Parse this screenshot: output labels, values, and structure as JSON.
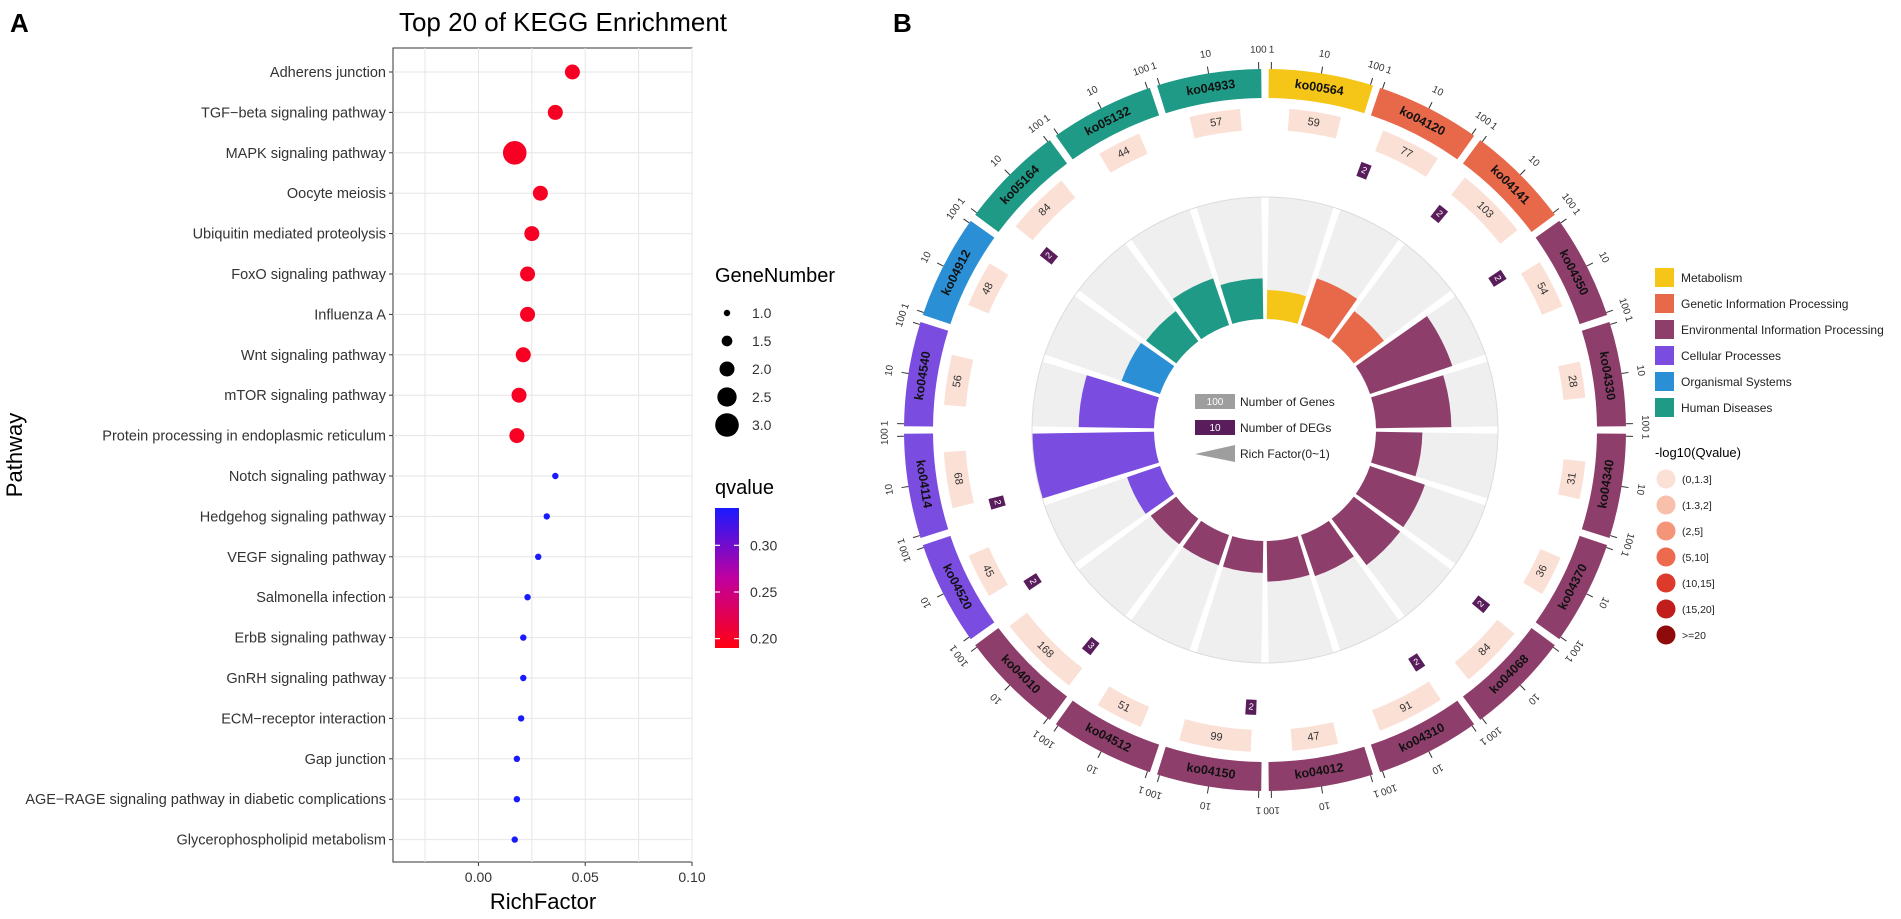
{
  "panel_a": {
    "letter": "A",
    "chart_data": {
      "type": "scatter",
      "title": "Top 20 of KEGG Enrichment",
      "xlabel": "RichFactor",
      "ylabel": "Pathway",
      "xlim": [
        -0.04,
        0.1
      ],
      "xticks": [
        0.0,
        0.05,
        0.1
      ],
      "xtick_labels": [
        "0.00",
        "0.05",
        "0.10"
      ],
      "grid": true,
      "points": [
        {
          "pathway": "Adherens junction",
          "x": 0.044,
          "gene_number": 2.0,
          "qvalue": 0.2
        },
        {
          "pathway": "TGF−beta signaling pathway",
          "x": 0.036,
          "gene_number": 2.0,
          "qvalue": 0.2
        },
        {
          "pathway": "MAPK signaling pathway",
          "x": 0.017,
          "gene_number": 3.0,
          "qvalue": 0.2
        },
        {
          "pathway": "Oocyte meiosis",
          "x": 0.029,
          "gene_number": 2.0,
          "qvalue": 0.2
        },
        {
          "pathway": "Ubiquitin mediated proteolysis",
          "x": 0.025,
          "gene_number": 2.0,
          "qvalue": 0.2
        },
        {
          "pathway": "FoxO signaling pathway",
          "x": 0.023,
          "gene_number": 2.0,
          "qvalue": 0.2
        },
        {
          "pathway": "Influenza A",
          "x": 0.023,
          "gene_number": 2.0,
          "qvalue": 0.2
        },
        {
          "pathway": "Wnt signaling pathway",
          "x": 0.021,
          "gene_number": 2.0,
          "qvalue": 0.2
        },
        {
          "pathway": "mTOR signaling pathway",
          "x": 0.019,
          "gene_number": 2.0,
          "qvalue": 0.2
        },
        {
          "pathway": "Protein processing in endoplasmic reticulum",
          "x": 0.018,
          "gene_number": 2.0,
          "qvalue": 0.2
        },
        {
          "pathway": "Notch signaling pathway",
          "x": 0.036,
          "gene_number": 1.0,
          "qvalue": 0.34
        },
        {
          "pathway": "Hedgehog signaling pathway",
          "x": 0.032,
          "gene_number": 1.0,
          "qvalue": 0.34
        },
        {
          "pathway": "VEGF signaling pathway",
          "x": 0.028,
          "gene_number": 1.0,
          "qvalue": 0.34
        },
        {
          "pathway": "Salmonella infection",
          "x": 0.023,
          "gene_number": 1.0,
          "qvalue": 0.34
        },
        {
          "pathway": "ErbB signaling pathway",
          "x": 0.021,
          "gene_number": 1.0,
          "qvalue": 0.34
        },
        {
          "pathway": "GnRH signaling pathway",
          "x": 0.021,
          "gene_number": 1.0,
          "qvalue": 0.34
        },
        {
          "pathway": "ECM−receptor interaction",
          "x": 0.02,
          "gene_number": 1.0,
          "qvalue": 0.34
        },
        {
          "pathway": "Gap junction",
          "x": 0.018,
          "gene_number": 1.0,
          "qvalue": 0.34
        },
        {
          "pathway": "AGE−RAGE signaling pathway in diabetic complications",
          "x": 0.018,
          "gene_number": 1.0,
          "qvalue": 0.34
        },
        {
          "pathway": "Glycerophospholipid metabolism",
          "x": 0.017,
          "gene_number": 1.0,
          "qvalue": 0.34
        }
      ],
      "size_legend": {
        "title": "GeneNumber",
        "values": [
          "1.0",
          "1.5",
          "2.0",
          "2.5",
          "3.0"
        ]
      },
      "color_legend": {
        "title": "qvalue",
        "ticks": [
          "0.30",
          "0.25",
          "0.20"
        ],
        "range": [
          0.19,
          0.34
        ],
        "low_color": "#ff0000",
        "mid_color": "#c8008c",
        "high_color": "#0000ff"
      }
    }
  },
  "panel_b": {
    "letter": "B",
    "chart_data": {
      "type": "circos",
      "scale_labels": [
        "1",
        "10",
        "100"
      ],
      "pathways": [
        {
          "id": "ko00564",
          "category": "Metabolism",
          "genes": 59,
          "degs": "",
          "rich": 0.1
        },
        {
          "id": "ko04120",
          "category": "Genetic Information Processing",
          "genes": 77,
          "degs": "2",
          "rich": 0.17
        },
        {
          "id": "ko04141",
          "category": "Genetic Information Processing",
          "genes": 103,
          "degs": "2",
          "rich": 0.13
        },
        {
          "id": "ko04350",
          "category": "Environmental Information Processing",
          "genes": 54,
          "degs": "2",
          "rich": 0.3
        },
        {
          "id": "ko04330",
          "category": "Environmental Information Processing",
          "genes": 28,
          "degs": "",
          "rich": 0.26
        },
        {
          "id": "ko04340",
          "category": "Environmental Information Processing",
          "genes": 31,
          "degs": "",
          "rich": 0.16
        },
        {
          "id": "ko04370",
          "category": "Environmental Information Processing",
          "genes": 36,
          "degs": "",
          "rich": 0.2
        },
        {
          "id": "ko04068",
          "category": "Environmental Information Processing",
          "genes": 84,
          "degs": "2",
          "rich": 0.2
        },
        {
          "id": "ko04310",
          "category": "Environmental Information Processing",
          "genes": 91,
          "degs": "2",
          "rich": 0.15
        },
        {
          "id": "ko04012",
          "category": "Environmental Information Processing",
          "genes": 47,
          "degs": "",
          "rich": 0.14
        },
        {
          "id": "ko04150",
          "category": "Environmental Information Processing",
          "genes": 99,
          "degs": "2",
          "rich": 0.11
        },
        {
          "id": "ko04512",
          "category": "Environmental Information Processing",
          "genes": 51,
          "degs": "",
          "rich": 0.11
        },
        {
          "id": "ko04010",
          "category": "Environmental Information Processing",
          "genes": 168,
          "degs": "3",
          "rich": 0.11
        },
        {
          "id": "ko04520",
          "category": "Cellular Processes",
          "genes": 45,
          "degs": "2",
          "rich": 0.12
        },
        {
          "id": "ko04114",
          "category": "Cellular Processes",
          "genes": 68,
          "degs": "2",
          "rich": 0.42
        },
        {
          "id": "ko04540",
          "category": "Cellular Processes",
          "genes": 56,
          "degs": "",
          "rich": 0.26
        },
        {
          "id": "ko04912",
          "category": "Organismal Systems",
          "genes": 48,
          "degs": "",
          "rich": 0.14
        },
        {
          "id": "ko05164",
          "category": "Human Diseases",
          "genes": 84,
          "degs": "2",
          "rich": 0.13
        },
        {
          "id": "ko05132",
          "category": "Human Diseases",
          "genes": 44,
          "degs": "",
          "rich": 0.17
        },
        {
          "id": "ko04933",
          "category": "Human Diseases",
          "genes": 57,
          "degs": "",
          "rich": 0.14
        }
      ],
      "center_legend": [
        {
          "value": "100",
          "label": "Number of Genes"
        },
        {
          "value": "10",
          "label": "Number of DEGs"
        },
        {
          "value": "",
          "label": "Rich Factor(0~1)"
        }
      ],
      "categories": [
        {
          "name": "Metabolism",
          "color": "#f5c518"
        },
        {
          "name": "Genetic Information Processing",
          "color": "#e8684a"
        },
        {
          "name": "Environmental Information Processing",
          "color": "#8e3e6b"
        },
        {
          "name": "Cellular Processes",
          "color": "#7b4ce0"
        },
        {
          "name": "Organismal Systems",
          "color": "#2b8fd6"
        },
        {
          "name": "Human Diseases",
          "color": "#1f9a86"
        }
      ],
      "qvalue_legend": {
        "title": "-log10(Qvalue)",
        "bins": [
          {
            "label": "(0,1.3]",
            "color": "#fbe0d6"
          },
          {
            "label": "(1.3,2]",
            "color": "#f8bfab"
          },
          {
            "label": "(2,5]",
            "color": "#f4957a"
          },
          {
            "label": "(5,10]",
            "color": "#ee6a4e"
          },
          {
            "label": "(10,15]",
            "color": "#dd3a2c"
          },
          {
            "label": "(15,20]",
            "color": "#c21d1d"
          },
          {
            "label": ">=20",
            "color": "#8f0a0a"
          }
        ]
      }
    }
  }
}
